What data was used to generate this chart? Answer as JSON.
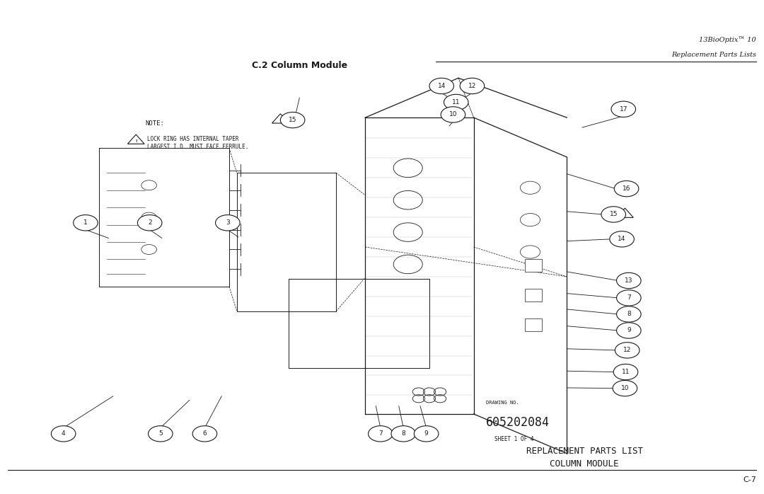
{
  "bg_color": "#ffffff",
  "page_width": 10.8,
  "page_height": 6.98,
  "header_text1": "13BioOptix™ 10",
  "header_text2": "Replacement Parts Lists",
  "section_title": "C.2 Column Module",
  "note_text1": "NOTE:",
  "note_text2": "LOCK RING HAS INTERNAL TAPER",
  "note_text3": "LARGEST I.D. MUST FACE FERRULE.",
  "drawing_no_label": "DRAWING NO.",
  "drawing_no": "605202084",
  "sheet_text": "SHEET 1 OF 4",
  "footer_text1": "REPLACEMENT PARTS LIST",
  "footer_text2": "COLUMN MODULE",
  "page_num": "C-7",
  "text_color": "#1a1a1a",
  "line_color": "#1a1a1a",
  "circle_bubble_color": "#ffffff",
  "circle_bubble_edge": "#1a1a1a"
}
